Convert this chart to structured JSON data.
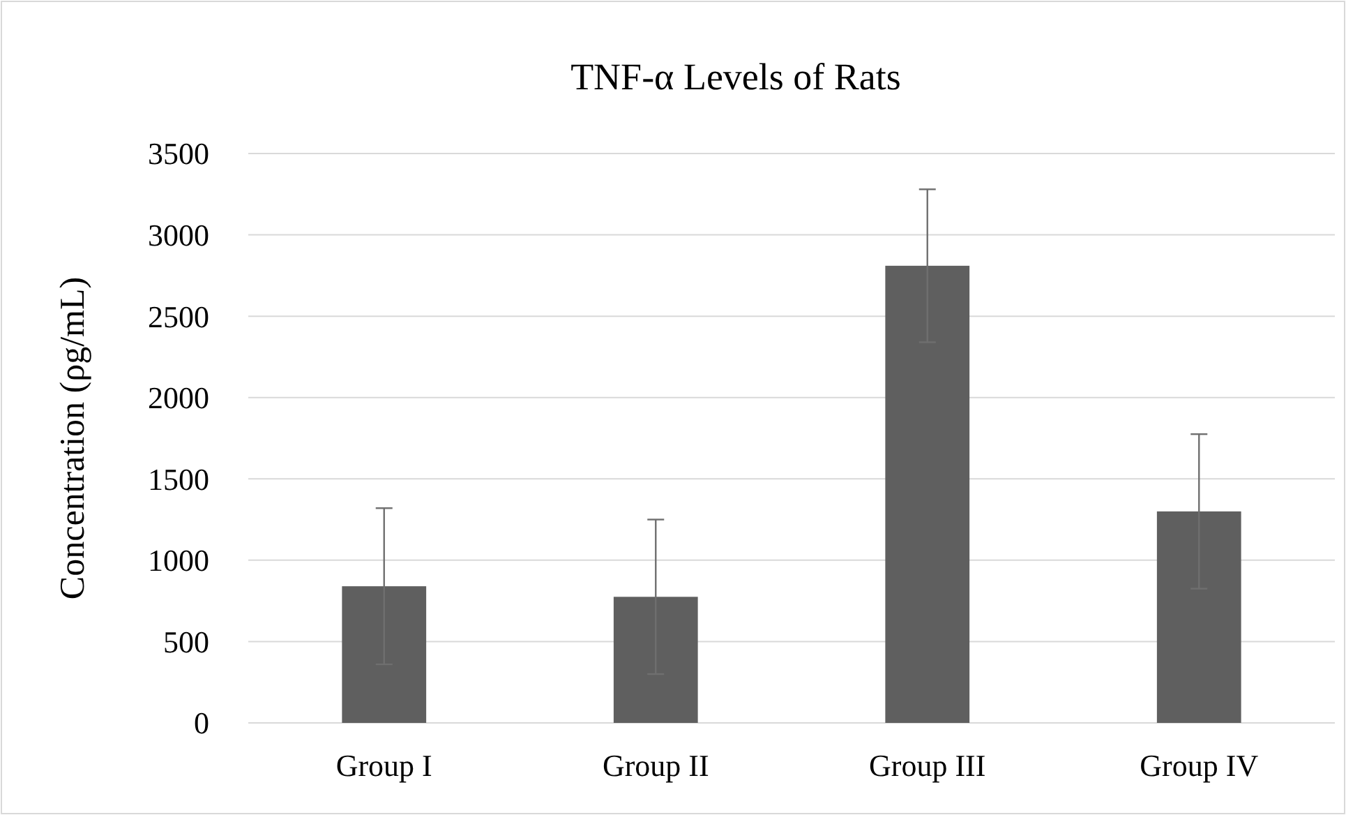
{
  "chart_data": {
    "type": "bar",
    "title": "TNF-α Levels of Rats",
    "ylabel": "Concentration (ρg/mL)",
    "categories": [
      "Group I",
      "Group II",
      "Group III",
      "Group IV"
    ],
    "values": [
      840,
      775,
      2810,
      1300
    ],
    "errors": [
      480,
      475,
      470,
      475
    ],
    "color": "#5f5f5f",
    "ylim": [
      0,
      3500
    ],
    "yticks": [
      0,
      500,
      1000,
      1500,
      2000,
      2500,
      3000,
      3500
    ],
    "grid": "y"
  }
}
